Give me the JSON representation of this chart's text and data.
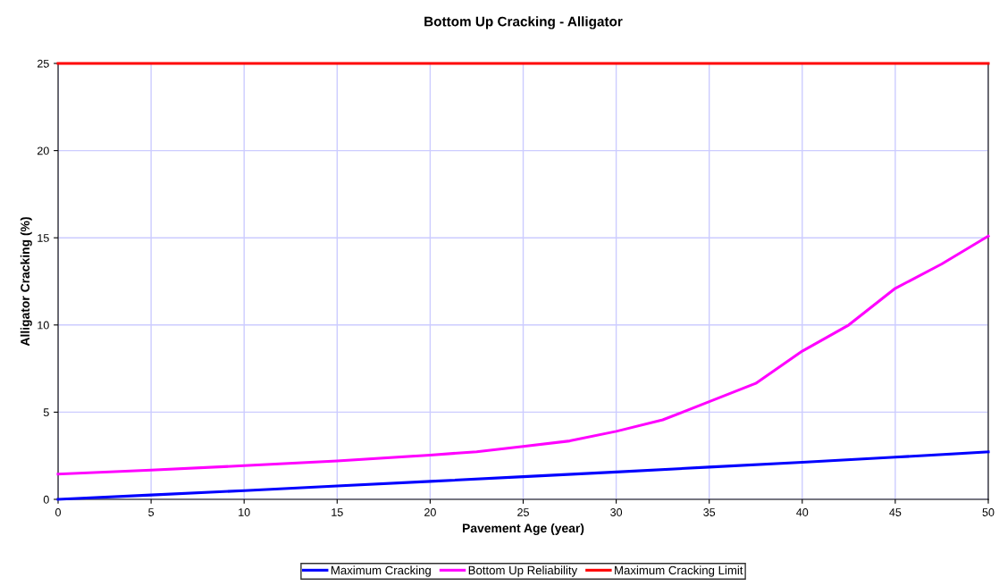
{
  "chart_data": {
    "type": "line",
    "title": "Bottom Up Cracking - Alligator",
    "xlabel": "Pavement Age (year)",
    "ylabel": "Alligator Cracking (%)",
    "xlim": [
      0,
      50
    ],
    "xticks": [
      0,
      5,
      10,
      15,
      20,
      25,
      30,
      35,
      40,
      45,
      50
    ],
    "ylim": [
      0,
      25
    ],
    "yticks": [
      0,
      5,
      10,
      15,
      20,
      25
    ],
    "grid": true,
    "legend": "bottom",
    "marker": "none",
    "line_style": "solid",
    "series": [
      {
        "name": "Maximum Cracking",
        "color": "#0000ff",
        "x": [
          0,
          5,
          10,
          15,
          20,
          25,
          30,
          35,
          40,
          45,
          50
        ],
        "values": [
          0,
          0.25,
          0.5,
          0.77,
          1.03,
          1.3,
          1.57,
          1.85,
          2.13,
          2.42,
          2.72
        ]
      },
      {
        "name": "Bottom Up Reliability",
        "color": "#ff00ff",
        "x": [
          0,
          5,
          10,
          15,
          20,
          22.5,
          25,
          27.5,
          30,
          32.5,
          35,
          37.5,
          40,
          42.5,
          45,
          47.5,
          50
        ],
        "values": [
          1.45,
          1.68,
          1.93,
          2.2,
          2.54,
          2.73,
          3.04,
          3.35,
          3.9,
          4.56,
          5.6,
          6.65,
          8.5,
          10.0,
          12.1,
          13.5,
          15.1
        ]
      },
      {
        "name": "Maximum Cracking Limit",
        "color": "#ff0000",
        "x": [
          0,
          50
        ],
        "values": [
          25,
          25
        ]
      }
    ]
  }
}
